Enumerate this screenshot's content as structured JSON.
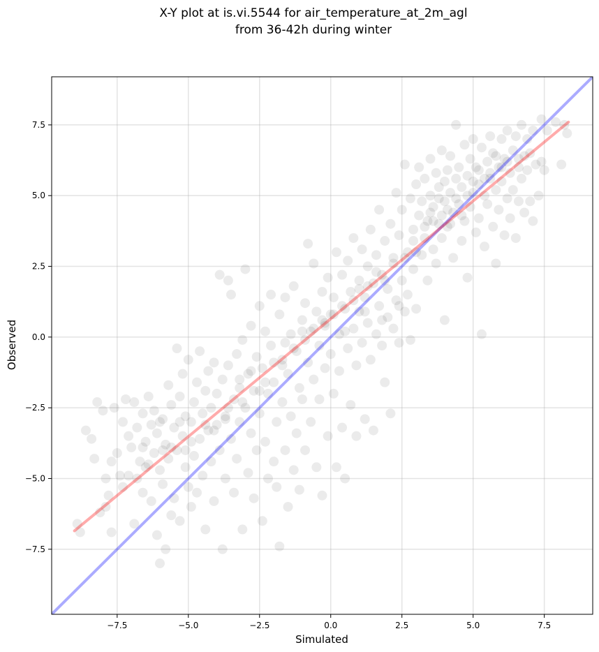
{
  "chart_data": {
    "type": "scatter",
    "title_line1": "X-Y plot at is.vi.5544 for air_temperature_at_2m_agl",
    "title_line2": "from 36-42h during winter",
    "xlabel": "Simulated",
    "ylabel": "Observed",
    "xlim": [
      -9.8,
      9.2
    ],
    "ylim": [
      -9.8,
      9.2
    ],
    "xticks": [
      -7.5,
      -5.0,
      -2.5,
      0.0,
      2.5,
      5.0,
      7.5
    ],
    "yticks": [
      -7.5,
      -5.0,
      -2.5,
      0.0,
      2.5,
      5.0,
      7.5
    ],
    "xtick_labels": [
      "−7.5",
      "−5.0",
      "−2.5",
      "0.0",
      "2.5",
      "5.0",
      "7.5"
    ],
    "ytick_labels": [
      "−7.5",
      "−5.0",
      "−2.5",
      "0.0",
      "2.5",
      "5.0",
      "7.5"
    ],
    "grid": true,
    "point_color": "#000000",
    "point_alpha": 0.08,
    "identity_line": {
      "x": [
        -9.8,
        9.2
      ],
      "y": [
        -9.8,
        9.2
      ],
      "color": "#0000ff"
    },
    "fit_line": {
      "x": [
        -9.0,
        8.35
      ],
      "y": [
        -6.85,
        7.6
      ],
      "color": "#ff0000"
    },
    "points": [
      [
        -8.9,
        -6.6
      ],
      [
        -8.8,
        -6.9
      ],
      [
        -8.6,
        -3.3
      ],
      [
        -8.4,
        -3.6
      ],
      [
        -8.3,
        -4.3
      ],
      [
        -8.2,
        -2.3
      ],
      [
        -8.1,
        -6.2
      ],
      [
        -8.0,
        -2.6
      ],
      [
        -7.9,
        -6.0
      ],
      [
        -7.9,
        -5.0
      ],
      [
        -7.8,
        -5.6
      ],
      [
        -7.7,
        -4.4
      ],
      [
        -7.7,
        -6.9
      ],
      [
        -7.6,
        -2.5
      ],
      [
        -7.5,
        -4.1
      ],
      [
        -7.4,
        -4.9
      ],
      [
        -7.3,
        -3.0
      ],
      [
        -7.3,
        -5.3
      ],
      [
        -7.2,
        -2.2
      ],
      [
        -7.1,
        -3.5
      ],
      [
        -7.1,
        -4.9
      ],
      [
        -7.0,
        -3.9
      ],
      [
        -6.9,
        -2.3
      ],
      [
        -6.9,
        -6.6
      ],
      [
        -6.8,
        -3.2
      ],
      [
        -6.8,
        -5.0
      ],
      [
        -6.7,
        -4.4
      ],
      [
        -6.6,
        -2.7
      ],
      [
        -6.6,
        -5.5
      ],
      [
        -6.5,
        -3.7
      ],
      [
        -6.5,
        -4.6
      ],
      [
        -6.4,
        -2.1
      ],
      [
        -6.3,
        -3.1
      ],
      [
        -6.3,
        -5.8
      ],
      [
        -6.2,
        -4.1
      ],
      [
        -6.2,
        -2.6
      ],
      [
        -6.1,
        -3.4
      ],
      [
        -6.1,
        -7.0
      ],
      [
        -6.0,
        -4.7
      ],
      [
        -6.0,
        -8.0
      ],
      [
        -5.9,
        -2.9
      ],
      [
        -5.9,
        -5.2
      ],
      [
        -5.8,
        -3.8
      ],
      [
        -5.8,
        -7.5
      ],
      [
        -5.7,
        -4.3
      ],
      [
        -5.7,
        -1.7
      ],
      [
        -5.6,
        -6.3
      ],
      [
        -5.6,
        -2.4
      ],
      [
        -5.5,
        -3.2
      ],
      [
        -5.5,
        -5.7
      ],
      [
        -5.4,
        -0.4
      ],
      [
        -5.4,
        -4.0
      ],
      [
        -5.3,
        -2.1
      ],
      [
        -5.3,
        -6.5
      ],
      [
        -5.2,
        -3.5
      ],
      [
        -5.2,
        -1.3
      ],
      [
        -5.1,
        -4.6
      ],
      [
        -5.1,
        -2.8
      ],
      [
        -5.0,
        -5.3
      ],
      [
        -5.0,
        -0.8
      ],
      [
        -4.9,
        -3.0
      ],
      [
        -4.9,
        -6.0
      ],
      [
        -4.8,
        -2.3
      ],
      [
        -4.8,
        -4.2
      ],
      [
        -4.7,
        -1.6
      ],
      [
        -4.7,
        -5.5
      ],
      [
        -4.6,
        -3.6
      ],
      [
        -4.6,
        -0.5
      ],
      [
        -4.5,
        -2.7
      ],
      [
        -4.5,
        -4.9
      ],
      [
        -4.4,
        -1.9
      ],
      [
        -4.4,
        -6.8
      ],
      [
        -4.3,
        -3.3
      ],
      [
        -4.3,
        -1.2
      ],
      [
        -4.2,
        -4.4
      ],
      [
        -4.2,
        -2.5
      ],
      [
        -4.1,
        -5.8
      ],
      [
        -4.1,
        -0.9
      ],
      [
        -4.0,
        -3.1
      ],
      [
        -4.0,
        -2.0
      ],
      [
        -3.9,
        2.2
      ],
      [
        -3.9,
        -4.0
      ],
      [
        -3.8,
        -1.5
      ],
      [
        -3.8,
        -7.5
      ],
      [
        -3.7,
        -2.8
      ],
      [
        -3.7,
        -5.0
      ],
      [
        -3.6,
        2.0
      ],
      [
        -3.6,
        -1.0
      ],
      [
        -3.5,
        -3.6
      ],
      [
        -3.5,
        1.5
      ],
      [
        -3.4,
        -2.2
      ],
      [
        -3.4,
        -5.5
      ],
      [
        -3.3,
        -0.6
      ],
      [
        -3.3,
        -4.3
      ],
      [
        -3.2,
        -1.8
      ],
      [
        -3.2,
        -3.0
      ],
      [
        -3.1,
        -6.8
      ],
      [
        -3.1,
        -0.1
      ],
      [
        -3.0,
        2.4
      ],
      [
        -3.0,
        -2.5
      ],
      [
        -2.9,
        -4.8
      ],
      [
        -2.9,
        -1.3
      ],
      [
        -2.8,
        0.4
      ],
      [
        -2.8,
        -3.4
      ],
      [
        -2.7,
        -5.7
      ],
      [
        -2.7,
        -1.9
      ],
      [
        -2.6,
        -0.7
      ],
      [
        -2.6,
        -4.0
      ],
      [
        -2.5,
        1.1
      ],
      [
        -2.5,
        -2.7
      ],
      [
        -2.4,
        -6.5
      ],
      [
        -2.4,
        -1.1
      ],
      [
        -2.3,
        0.2
      ],
      [
        -2.3,
        -3.7
      ],
      [
        -2.2,
        -5.0
      ],
      [
        -2.2,
        -2.0
      ],
      [
        -2.1,
        1.5
      ],
      [
        -2.1,
        -0.3
      ],
      [
        -2.0,
        -4.4
      ],
      [
        -2.0,
        -1.6
      ],
      [
        -1.9,
        -3.0
      ],
      [
        -1.9,
        -5.3
      ],
      [
        -1.8,
        0.8
      ],
      [
        -1.8,
        -7.4
      ],
      [
        -1.7,
        -2.3
      ],
      [
        -1.7,
        -0.8
      ],
      [
        -1.6,
        -4.0
      ],
      [
        -1.6,
        1.4
      ],
      [
        -1.5,
        -1.3
      ],
      [
        -1.5,
        -6.0
      ],
      [
        -1.4,
        0.1
      ],
      [
        -1.4,
        -2.8
      ],
      [
        -1.3,
        -4.7
      ],
      [
        -1.3,
        1.8
      ],
      [
        -1.2,
        -0.5
      ],
      [
        -1.2,
        -3.4
      ],
      [
        -1.1,
        -1.8
      ],
      [
        -1.1,
        -5.4
      ],
      [
        -1.0,
        0.6
      ],
      [
        -1.0,
        -2.2
      ],
      [
        -0.9,
        1.2
      ],
      [
        -0.9,
        -4.0
      ],
      [
        -0.8,
        -0.9
      ],
      [
        -0.8,
        3.3
      ],
      [
        -0.7,
        0.2
      ],
      [
        -0.7,
        -3.0
      ],
      [
        -0.6,
        -1.5
      ],
      [
        -0.6,
        2.6
      ],
      [
        -0.5,
        0.9
      ],
      [
        -0.5,
        -4.6
      ],
      [
        -0.4,
        -0.3
      ],
      [
        -0.4,
        -2.2
      ],
      [
        -0.3,
        1.6
      ],
      [
        -0.3,
        -5.6
      ],
      [
        -0.2,
        0.4
      ],
      [
        -0.2,
        -1.1
      ],
      [
        -0.1,
        2.1
      ],
      [
        -0.1,
        -3.5
      ],
      [
        0.0,
        0.8
      ],
      [
        0.0,
        -0.6
      ],
      [
        0.1,
        1.4
      ],
      [
        0.1,
        -2.0
      ],
      [
        0.2,
        3.0
      ],
      [
        0.2,
        -4.6
      ],
      [
        0.3,
        0.1
      ],
      [
        0.3,
        -1.2
      ],
      [
        0.4,
        2.2
      ],
      [
        0.4,
        -3.2
      ],
      [
        0.5,
        1.0
      ],
      [
        0.5,
        -5.0
      ],
      [
        0.6,
        -0.4
      ],
      [
        0.6,
        2.7
      ],
      [
        0.7,
        1.6
      ],
      [
        0.7,
        -2.4
      ],
      [
        0.8,
        0.3
      ],
      [
        0.8,
        3.5
      ],
      [
        0.9,
        -1.0
      ],
      [
        0.9,
        -3.5
      ],
      [
        1.0,
        2.0
      ],
      [
        1.0,
        0.9
      ],
      [
        1.1,
        -0.2
      ],
      [
        1.1,
        3.1
      ],
      [
        1.2,
        1.4
      ],
      [
        1.2,
        -2.9
      ],
      [
        1.3,
        2.5
      ],
      [
        1.3,
        0.5
      ],
      [
        1.4,
        -0.8
      ],
      [
        1.4,
        3.8
      ],
      [
        1.5,
        1.9
      ],
      [
        1.5,
        -3.3
      ],
      [
        1.6,
        0.1
      ],
      [
        1.6,
        2.9
      ],
      [
        1.7,
        1.1
      ],
      [
        1.7,
        4.5
      ],
      [
        1.8,
        -0.3
      ],
      [
        1.8,
        2.2
      ],
      [
        1.9,
        -1.6
      ],
      [
        1.9,
        3.4
      ],
      [
        2.0,
        0.7
      ],
      [
        2.0,
        1.7
      ],
      [
        2.1,
        4.0
      ],
      [
        2.1,
        -2.7
      ],
      [
        2.2,
        2.8
      ],
      [
        2.2,
        0.3
      ],
      [
        2.3,
        1.3
      ],
      [
        2.3,
        5.1
      ],
      [
        2.4,
        3.6
      ],
      [
        2.4,
        -0.2
      ],
      [
        2.5,
        2.0
      ],
      [
        2.5,
        4.5
      ],
      [
        2.6,
        0.9
      ],
      [
        2.6,
        6.1
      ],
      [
        2.7,
        3.0
      ],
      [
        2.7,
        1.5
      ],
      [
        2.8,
        4.9
      ],
      [
        2.8,
        -0.1
      ],
      [
        2.9,
        3.8
      ],
      [
        2.9,
        2.4
      ],
      [
        3.0,
        5.4
      ],
      [
        3.0,
        1.0
      ],
      [
        3.1,
        4.3
      ],
      [
        3.1,
        6.0
      ],
      [
        3.2,
        2.9
      ],
      [
        3.2,
        4.8
      ],
      [
        3.3,
        3.5
      ],
      [
        3.3,
        5.6
      ],
      [
        3.4,
        2.0
      ],
      [
        3.4,
        4.1
      ],
      [
        3.5,
        5.0
      ],
      [
        3.5,
        6.3
      ],
      [
        3.6,
        3.1
      ],
      [
        3.6,
        4.6
      ],
      [
        3.7,
        5.8
      ],
      [
        3.7,
        2.6
      ],
      [
        3.8,
        4.0
      ],
      [
        3.8,
        5.3
      ],
      [
        3.9,
        6.6
      ],
      [
        3.9,
        3.5
      ],
      [
        4.0,
        4.8
      ],
      [
        4.0,
        0.6
      ],
      [
        4.1,
        5.9
      ],
      [
        4.1,
        3.9
      ],
      [
        4.2,
        5.1
      ],
      [
        4.2,
        6.4
      ],
      [
        4.3,
        4.4
      ],
      [
        4.3,
        2.8
      ],
      [
        4.4,
        5.6
      ],
      [
        4.4,
        7.5
      ],
      [
        4.5,
        4.7
      ],
      [
        4.5,
        6.0
      ],
      [
        4.6,
        3.4
      ],
      [
        4.6,
        5.3
      ],
      [
        4.7,
        6.8
      ],
      [
        4.7,
        4.1
      ],
      [
        4.8,
        5.7
      ],
      [
        4.8,
        2.1
      ],
      [
        4.9,
        6.3
      ],
      [
        4.9,
        4.6
      ],
      [
        5.0,
        5.1
      ],
      [
        5.0,
        7.0
      ],
      [
        5.1,
        3.7
      ],
      [
        5.1,
        6.0
      ],
      [
        5.2,
        5.4
      ],
      [
        5.2,
        4.2
      ],
      [
        5.3,
        6.7
      ],
      [
        5.3,
        0.1
      ],
      [
        5.4,
        5.0
      ],
      [
        5.4,
        3.2
      ],
      [
        5.5,
        6.2
      ],
      [
        5.5,
        4.7
      ],
      [
        5.6,
        7.1
      ],
      [
        5.6,
        5.6
      ],
      [
        5.7,
        3.9
      ],
      [
        5.7,
        6.5
      ],
      [
        5.8,
        5.2
      ],
      [
        5.8,
        2.6
      ],
      [
        5.9,
        6.0
      ],
      [
        5.9,
        4.5
      ],
      [
        6.0,
        7.0
      ],
      [
        6.0,
        5.5
      ],
      [
        6.1,
        3.6
      ],
      [
        6.1,
        6.3
      ],
      [
        6.2,
        4.9
      ],
      [
        6.2,
        7.3
      ],
      [
        6.3,
        5.8
      ],
      [
        6.3,
        4.2
      ],
      [
        6.4,
        6.6
      ],
      [
        6.4,
        5.2
      ],
      [
        6.5,
        3.5
      ],
      [
        6.5,
        7.1
      ],
      [
        6.6,
        6.0
      ],
      [
        6.6,
        4.8
      ],
      [
        6.7,
        7.5
      ],
      [
        6.7,
        5.6
      ],
      [
        6.8,
        6.4
      ],
      [
        6.8,
        4.4
      ],
      [
        6.9,
        7.0
      ],
      [
        6.9,
        5.9
      ],
      [
        7.0,
        4.8
      ],
      [
        7.0,
        6.5
      ],
      [
        7.1,
        7.3
      ],
      [
        7.1,
        4.1
      ],
      [
        7.2,
        6.1
      ],
      [
        7.3,
        5.0
      ],
      [
        7.4,
        7.7
      ],
      [
        7.4,
        6.2
      ],
      [
        7.5,
        5.9
      ],
      [
        7.6,
        7.3
      ],
      [
        7.9,
        7.6
      ],
      [
        8.1,
        6.1
      ],
      [
        8.2,
        7.5
      ],
      [
        8.3,
        7.2
      ],
      [
        -6.4,
        -4.5
      ],
      [
        -5.6,
        -3.9
      ],
      [
        -4.9,
        -3.7
      ],
      [
        -3.7,
        -2.9
      ],
      [
        -3.1,
        -2.3
      ],
      [
        -2.3,
        -1.6
      ],
      [
        -1.7,
        -1.0
      ],
      [
        -0.9,
        -0.1
      ],
      [
        -0.3,
        0.6
      ],
      [
        0.4,
        1.1
      ],
      [
        1.0,
        1.7
      ],
      [
        1.6,
        2.3
      ],
      [
        2.2,
        2.6
      ],
      [
        2.9,
        3.4
      ],
      [
        3.6,
        4.1
      ],
      [
        4.1,
        4.5
      ],
      [
        4.8,
        5.0
      ],
      [
        5.4,
        5.6
      ],
      [
        6.0,
        6.0
      ],
      [
        6.6,
        6.3
      ],
      [
        -6.6,
        -3.9
      ],
      [
        -5.9,
        -4.0
      ],
      [
        -5.3,
        -3.0
      ],
      [
        -4.4,
        -3.1
      ],
      [
        -3.6,
        -2.5
      ],
      [
        -2.8,
        -1.2
      ],
      [
        -2.0,
        -0.9
      ],
      [
        -1.3,
        -0.4
      ],
      [
        -0.6,
        0.3
      ],
      [
        0.1,
        0.8
      ],
      [
        0.8,
        1.3
      ],
      [
        1.3,
        1.8
      ],
      [
        1.9,
        2.0
      ],
      [
        2.6,
        2.8
      ],
      [
        3.3,
        3.9
      ],
      [
        3.9,
        4.3
      ],
      [
        4.4,
        4.9
      ],
      [
        5.0,
        5.5
      ],
      [
        5.6,
        5.8
      ],
      [
        6.2,
        6.2
      ],
      [
        -6.0,
        -3.0
      ],
      [
        -5.1,
        -4.0
      ],
      [
        -4.1,
        -3.3
      ],
      [
        -3.2,
        -1.5
      ],
      [
        -2.5,
        -1.9
      ],
      [
        -1.6,
        -0.2
      ],
      [
        -1.0,
        0.2
      ],
      [
        -0.2,
        0.5
      ],
      [
        0.5,
        0.2
      ],
      [
        1.2,
        0.9
      ],
      [
        1.8,
        0.6
      ],
      [
        2.4,
        1.1
      ],
      [
        3.0,
        3.0
      ],
      [
        3.5,
        4.4
      ],
      [
        4.2,
        4.0
      ],
      [
        4.6,
        4.3
      ],
      [
        5.2,
        5.9
      ],
      [
        5.8,
        6.4
      ],
      [
        4.0,
        5.5
      ],
      [
        3.8,
        4.9
      ]
    ]
  }
}
